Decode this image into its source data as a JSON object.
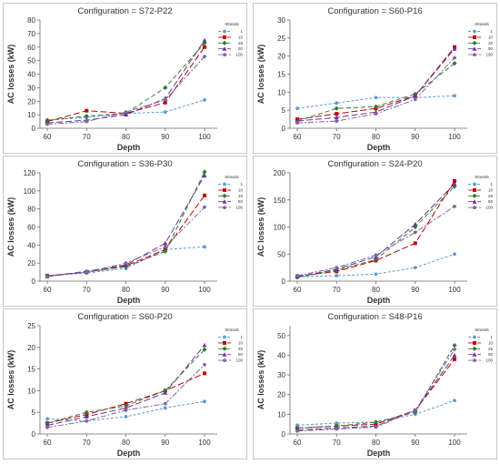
{
  "figure": {
    "description_free": true
  },
  "chart_data": [
    {
      "type": "line",
      "title": "Configuration = S72-P22",
      "xlabel": "Depth",
      "ylabel": "AC losses (kW)",
      "x": [
        60,
        70,
        80,
        90,
        100
      ],
      "ylim": [
        0,
        80
      ],
      "yticks": [
        0,
        10,
        20,
        30,
        40,
        50,
        60,
        70,
        80
      ],
      "grid": false,
      "legend_title": "Strands",
      "legend_placement": "top-right",
      "series": [
        {
          "name": "1",
          "color": "#5b9bd5",
          "values": [
            6,
            8,
            11,
            12,
            21
          ]
        },
        {
          "name": "10",
          "color": "#c00000",
          "values": [
            5,
            13,
            11,
            19,
            60
          ]
        },
        {
          "name": "25",
          "color": "#2e7d32",
          "values": [
            6,
            9,
            11,
            30,
            63
          ]
        },
        {
          "name": "50",
          "color": "#7030a0",
          "values": [
            4,
            6,
            10,
            22,
            65
          ]
        },
        {
          "name": "100",
          "color": "#8064a2",
          "values": [
            3,
            5,
            12,
            21,
            53
          ]
        }
      ]
    },
    {
      "type": "line",
      "title": "Configuration = S60-P16",
      "xlabel": "Depth",
      "ylabel": "AC losses (kW)",
      "x": [
        60,
        70,
        80,
        90,
        100
      ],
      "ylim": [
        0,
        30
      ],
      "yticks": [
        0,
        5,
        10,
        15,
        20,
        25,
        30
      ],
      "grid": false,
      "legend_title": "Strands",
      "legend_placement": "top-right",
      "series": [
        {
          "name": "1",
          "color": "#5b9bd5",
          "values": [
            5.5,
            7,
            8.5,
            8.5,
            9
          ]
        },
        {
          "name": "10",
          "color": "#c00000",
          "values": [
            2.5,
            4,
            5.5,
            9,
            22.5
          ]
        },
        {
          "name": "25",
          "color": "#2e7d32",
          "values": [
            2,
            5.5,
            6,
            9.5,
            18
          ]
        },
        {
          "name": "50",
          "color": "#7030a0",
          "values": [
            2,
            3,
            4.5,
            9,
            22
          ]
        },
        {
          "name": "100",
          "color": "#8064a2",
          "values": [
            1.5,
            2,
            4,
            8,
            19.5
          ]
        }
      ]
    },
    {
      "type": "line",
      "title": "Configuration = S36-P30",
      "xlabel": "Depth",
      "ylabel": "AC losses (kW)",
      "x": [
        60,
        70,
        80,
        90,
        100
      ],
      "ylim": [
        0,
        120
      ],
      "yticks": [
        0,
        20,
        40,
        60,
        80,
        100,
        120
      ],
      "grid": false,
      "legend_title": "Strands",
      "legend_placement": "top-right",
      "series": [
        {
          "name": "1",
          "color": "#5b9bd5",
          "values": [
            6,
            9,
            14,
            35,
            38
          ]
        },
        {
          "name": "10",
          "color": "#c00000",
          "values": [
            6,
            10,
            17,
            35,
            95
          ]
        },
        {
          "name": "25",
          "color": "#2e7d32",
          "values": [
            6,
            10,
            16,
            33,
            121
          ]
        },
        {
          "name": "50",
          "color": "#7030a0",
          "values": [
            5,
            11,
            18,
            42,
            117
          ]
        },
        {
          "name": "100",
          "color": "#8064a2",
          "values": [
            5,
            10,
            20,
            38,
            82
          ]
        }
      ]
    },
    {
      "type": "line",
      "title": "Configuration = S24-P20",
      "xlabel": "Depth",
      "ylabel": "AC losses (kW)",
      "x": [
        60,
        70,
        80,
        90,
        100
      ],
      "ylim": [
        0,
        200
      ],
      "yticks": [
        0,
        50,
        100,
        150,
        200
      ],
      "grid": false,
      "legend_title": "Strands",
      "legend_placement": "top-right",
      "series": [
        {
          "name": "1",
          "color": "#5b9bd5",
          "values": [
            8,
            10,
            13,
            25,
            50
          ]
        },
        {
          "name": "10",
          "color": "#c00000",
          "values": [
            9,
            18,
            38,
            70,
            185
          ]
        },
        {
          "name": "25",
          "color": "#2e7d32",
          "values": [
            7,
            20,
            40,
            100,
            175
          ]
        },
        {
          "name": "50",
          "color": "#7030a0",
          "values": [
            8,
            22,
            45,
            105,
            180
          ]
        },
        {
          "name": "100",
          "color": "#8064a2",
          "values": [
            10,
            25,
            48,
            90,
            138
          ]
        }
      ]
    },
    {
      "type": "line",
      "title": "Configuration = S60-P20",
      "xlabel": "Depth",
      "ylabel": "AC losses (kW)",
      "x": [
        60,
        70,
        80,
        90,
        100
      ],
      "ylim": [
        0,
        25
      ],
      "yticks": [
        0,
        5,
        10,
        15,
        20,
        25
      ],
      "grid": false,
      "legend_title": "Strands",
      "legend_placement": "top-right",
      "series": [
        {
          "name": "1",
          "color": "#5b9bd5",
          "values": [
            3.5,
            3,
            4,
            6,
            7.5
          ]
        },
        {
          "name": "10",
          "color": "#c00000",
          "values": [
            2.5,
            4.5,
            7,
            10,
            14
          ]
        },
        {
          "name": "25",
          "color": "#2e7d32",
          "values": [
            2.5,
            5,
            6.5,
            10,
            19.5
          ]
        },
        {
          "name": "50",
          "color": "#7030a0",
          "values": [
            2,
            4,
            6,
            9.5,
            20.5
          ]
        },
        {
          "name": "100",
          "color": "#8064a2",
          "values": [
            1.5,
            3,
            5.5,
            7,
            16
          ]
        }
      ]
    },
    {
      "type": "line",
      "title": "Configuration = S48-P16",
      "xlabel": "Depth",
      "ylabel": "AC losses (kW)",
      "x": [
        60,
        70,
        80,
        90,
        100
      ],
      "ylim": [
        0,
        55
      ],
      "yticks": [
        0,
        10,
        20,
        30,
        40,
        50
      ],
      "grid": false,
      "legend_title": "Strands",
      "legend_placement": "top-right",
      "series": [
        {
          "name": "1",
          "color": "#5b9bd5",
          "values": [
            4.5,
            5.5,
            6,
            10,
            17
          ]
        },
        {
          "name": "10",
          "color": "#c00000",
          "values": [
            3,
            4,
            5,
            12,
            38
          ]
        },
        {
          "name": "25",
          "color": "#2e7d32",
          "values": [
            3,
            4,
            6,
            11,
            45
          ]
        },
        {
          "name": "50",
          "color": "#7030a0",
          "values": [
            2,
            3,
            4,
            12,
            40
          ]
        },
        {
          "name": "100",
          "color": "#8064a2",
          "values": [
            1.5,
            2.5,
            3.5,
            12,
            43
          ]
        }
      ]
    }
  ]
}
